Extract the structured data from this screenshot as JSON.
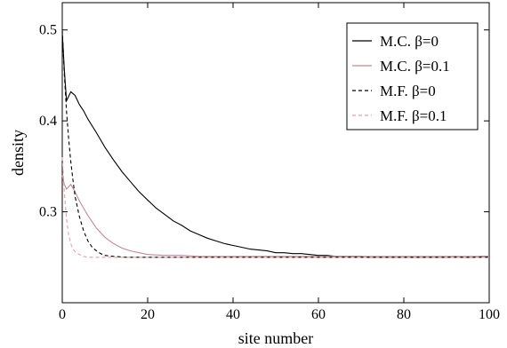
{
  "chart_data": {
    "type": "line",
    "xlabel": "site number",
    "ylabel": "density",
    "xlim": [
      0,
      100
    ],
    "ylim": [
      0.2,
      0.53
    ],
    "x_ticks": [
      0,
      20,
      40,
      60,
      80,
      100
    ],
    "y_ticks": [
      0.3,
      0.4,
      0.5
    ],
    "x_tick_labels": [
      "0",
      "20",
      "40",
      "60",
      "80",
      "100"
    ],
    "y_tick_labels": [
      "0.3",
      "0.4",
      "0.5"
    ],
    "grid": false,
    "legend_position": "top-right",
    "series": [
      {
        "name": "M.C. β=0",
        "color": "#000000",
        "dash": "solid",
        "x": [
          0,
          0.5,
          1,
          2,
          3,
          4,
          5,
          6,
          8,
          10,
          12,
          14,
          16,
          18,
          20,
          22,
          24,
          26,
          28,
          30,
          32,
          34,
          36,
          38,
          40,
          42,
          44,
          46,
          48,
          50,
          52,
          54,
          56,
          58,
          60,
          62,
          64,
          66,
          68,
          70,
          72,
          74,
          76,
          78,
          80,
          82,
          84,
          86,
          88,
          90,
          92,
          94,
          96,
          98,
          100
        ],
        "y": [
          0.497,
          0.455,
          0.422,
          0.432,
          0.428,
          0.418,
          0.411,
          0.402,
          0.387,
          0.371,
          0.357,
          0.344,
          0.333,
          0.322,
          0.313,
          0.304,
          0.297,
          0.29,
          0.285,
          0.279,
          0.275,
          0.271,
          0.268,
          0.265,
          0.263,
          0.261,
          0.259,
          0.258,
          0.257,
          0.255,
          0.255,
          0.254,
          0.254,
          0.253,
          0.252,
          0.252,
          0.251,
          0.251,
          0.251,
          0.251,
          0.25,
          0.25,
          0.25,
          0.25,
          0.25,
          0.25,
          0.25,
          0.25,
          0.25,
          0.25,
          0.251,
          0.25,
          0.25,
          0.251,
          0.251
        ]
      },
      {
        "name": "M.C. β=0.1",
        "color": "#c08a94",
        "dash": "solid",
        "x": [
          0,
          0.5,
          1,
          2,
          3,
          4,
          5,
          6,
          7,
          8,
          9,
          10,
          12,
          14,
          16,
          18,
          20,
          24,
          28,
          32,
          36,
          40,
          50,
          60,
          70,
          80,
          90,
          100
        ],
        "y": [
          0.34,
          0.33,
          0.325,
          0.33,
          0.322,
          0.312,
          0.304,
          0.296,
          0.289,
          0.282,
          0.277,
          0.272,
          0.265,
          0.26,
          0.257,
          0.255,
          0.253,
          0.252,
          0.252,
          0.251,
          0.251,
          0.251,
          0.251,
          0.251,
          0.251,
          0.251,
          0.251,
          0.251
        ]
      },
      {
        "name": "M.F. β=0",
        "color": "#000000",
        "dash": "dashed",
        "x": [
          0,
          0.5,
          1,
          1.5,
          2,
          2.5,
          3,
          4,
          5,
          6,
          7,
          8,
          9,
          10,
          12,
          15,
          20,
          100
        ],
        "y": [
          0.5,
          0.45,
          0.41,
          0.38,
          0.355,
          0.335,
          0.317,
          0.295,
          0.279,
          0.268,
          0.261,
          0.257,
          0.254,
          0.252,
          0.251,
          0.25,
          0.25,
          0.25
        ]
      },
      {
        "name": "M.F. β=0.1",
        "color": "#e0a0a8",
        "dash": "dashed",
        "x": [
          0,
          0.5,
          1,
          1.5,
          2,
          2.5,
          3,
          4,
          5,
          6,
          8,
          10,
          100
        ],
        "y": [
          0.36,
          0.32,
          0.292,
          0.275,
          0.265,
          0.259,
          0.256,
          0.253,
          0.251,
          0.25,
          0.25,
          0.25,
          0.25
        ]
      }
    ]
  }
}
